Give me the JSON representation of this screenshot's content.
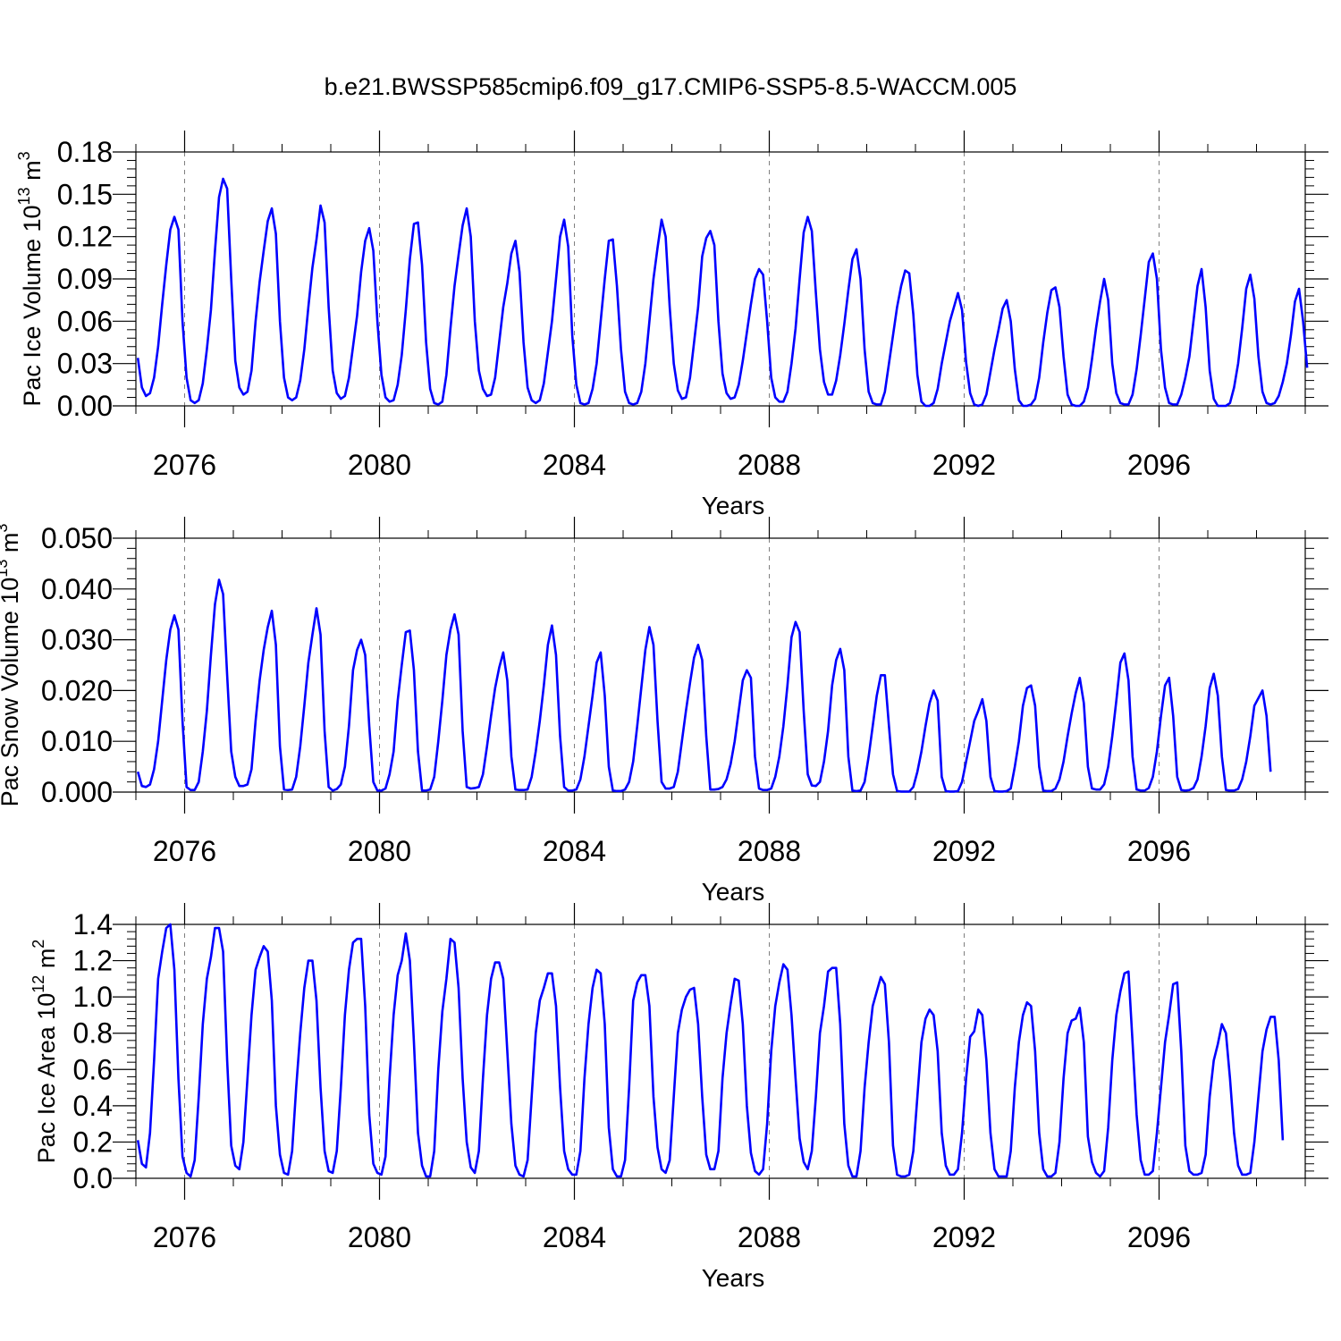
{
  "figure": {
    "title": "b.e21.BWSSP585cmip6.f09_g17.CMIP6-SSP5-8.5-WACCM.005"
  },
  "style": {
    "line_color": "#0000ff",
    "axis_color": "#000000",
    "grid_color": "#808080"
  },
  "chart_data": [
    {
      "type": "line",
      "title": "b.e21.BWSSP585cmip6.f09_g17.CMIP6-SSP5-8.5-WACCM.005",
      "xlabel": "Years",
      "ylabel": {
        "base": "Pac Ice Volume 10",
        "sup": "13",
        "unit": " m",
        "unit_sup": "3"
      },
      "xlim": [
        2075,
        2099
      ],
      "ylim": [
        0,
        0.18
      ],
      "xticks": [
        2076,
        2080,
        2084,
        2088,
        2092,
        2096
      ],
      "xtick_labels": [
        "2076",
        "2080",
        "2084",
        "2088",
        "2092",
        "2096"
      ],
      "yticks": [
        0,
        0.03,
        0.06,
        0.09,
        0.12,
        0.15,
        0.18
      ],
      "ytick_labels": [
        "0.00",
        "0.03",
        "0.06",
        "0.09",
        "0.12",
        "0.15",
        "0.18"
      ],
      "grid": "vertical dashed lines at major x ticks",
      "series": [
        {
          "x_start": 2075.04,
          "x_step": 0.08333,
          "values": [
            0.034,
            0.013,
            0.007,
            0.009,
            0.02,
            0.042,
            0.072,
            0.1,
            0.125,
            0.134,
            0.125,
            0.06,
            0.02,
            0.004,
            0.002,
            0.004,
            0.016,
            0.04,
            0.068,
            0.11,
            0.148,
            0.161,
            0.154,
            0.09,
            0.032,
            0.013,
            0.008,
            0.01,
            0.025,
            0.06,
            0.088,
            0.11,
            0.131,
            0.14,
            0.122,
            0.06,
            0.02,
            0.006,
            0.004,
            0.006,
            0.018,
            0.04,
            0.07,
            0.098,
            0.118,
            0.142,
            0.13,
            0.07,
            0.025,
            0.009,
            0.005,
            0.007,
            0.02,
            0.042,
            0.064,
            0.095,
            0.117,
            0.126,
            0.11,
            0.06,
            0.022,
            0.006,
            0.003,
            0.004,
            0.015,
            0.036,
            0.068,
            0.104,
            0.129,
            0.13,
            0.1,
            0.045,
            0.012,
            0.002,
            0.001,
            0.003,
            0.022,
            0.055,
            0.085,
            0.107,
            0.128,
            0.14,
            0.12,
            0.06,
            0.025,
            0.012,
            0.007,
            0.008,
            0.02,
            0.045,
            0.07,
            0.087,
            0.108,
            0.117,
            0.095,
            0.045,
            0.013,
            0.004,
            0.002,
            0.004,
            0.016,
            0.038,
            0.06,
            0.09,
            0.12,
            0.132,
            0.113,
            0.05,
            0.015,
            0.002,
            0.001,
            0.002,
            0.012,
            0.03,
            0.06,
            0.09,
            0.117,
            0.118,
            0.085,
            0.04,
            0.01,
            0.002,
            0.001,
            0.002,
            0.01,
            0.03,
            0.06,
            0.09,
            0.112,
            0.132,
            0.12,
            0.07,
            0.03,
            0.011,
            0.005,
            0.006,
            0.02,
            0.045,
            0.07,
            0.106,
            0.119,
            0.124,
            0.114,
            0.06,
            0.023,
            0.009,
            0.005,
            0.006,
            0.015,
            0.032,
            0.052,
            0.072,
            0.09,
            0.097,
            0.093,
            0.06,
            0.02,
            0.006,
            0.003,
            0.003,
            0.01,
            0.03,
            0.055,
            0.09,
            0.123,
            0.134,
            0.124,
            0.08,
            0.04,
            0.017,
            0.008,
            0.008,
            0.018,
            0.036,
            0.058,
            0.082,
            0.104,
            0.111,
            0.09,
            0.04,
            0.01,
            0.002,
            0.001,
            0.001,
            0.01,
            0.03,
            0.05,
            0.07,
            0.085,
            0.096,
            0.094,
            0.065,
            0.022,
            0.003,
            0.0,
            0.0,
            0.002,
            0.012,
            0.03,
            0.045,
            0.06,
            0.07,
            0.08,
            0.068,
            0.031,
            0.009,
            0.001,
            0.0,
            0.001,
            0.008,
            0.024,
            0.04,
            0.054,
            0.069,
            0.075,
            0.06,
            0.026,
            0.004,
            0.0,
            0.0,
            0.001,
            0.005,
            0.02,
            0.045,
            0.066,
            0.082,
            0.084,
            0.07,
            0.035,
            0.008,
            0.001,
            0.0,
            0.0,
            0.003,
            0.013,
            0.033,
            0.055,
            0.074,
            0.09,
            0.075,
            0.03,
            0.009,
            0.002,
            0.001,
            0.001,
            0.008,
            0.026,
            0.05,
            0.076,
            0.102,
            0.108,
            0.09,
            0.04,
            0.013,
            0.002,
            0.001,
            0.001,
            0.008,
            0.02,
            0.035,
            0.06,
            0.085,
            0.097,
            0.07,
            0.025,
            0.005,
            0.0,
            0.0,
            0.0,
            0.002,
            0.013,
            0.03,
            0.055,
            0.083,
            0.093,
            0.076,
            0.035,
            0.01,
            0.002,
            0.001,
            0.002,
            0.007,
            0.017,
            0.03,
            0.05,
            0.074,
            0.083,
            0.06,
            0.027
          ]
        }
      ]
    },
    {
      "type": "line",
      "xlabel": "Years",
      "ylabel": {
        "base": "Pac Snow Volume 10",
        "sup": "13",
        "unit": " m",
        "unit_sup": "3"
      },
      "xlim": [
        2075,
        2099
      ],
      "ylim": [
        0,
        0.05
      ],
      "xticks": [
        2076,
        2080,
        2084,
        2088,
        2092,
        2096
      ],
      "xtick_labels": [
        "2076",
        "2080",
        "2084",
        "2088",
        "2092",
        "2096"
      ],
      "yticks": [
        0,
        0.01,
        0.02,
        0.03,
        0.04,
        0.05
      ],
      "ytick_labels": [
        "0.000",
        "0.010",
        "0.020",
        "0.030",
        "0.040",
        "0.050"
      ],
      "grid": "vertical dashed lines at major x ticks",
      "series": [
        {
          "x_start": 2075.04,
          "x_step": 0.08333,
          "values": [
            0.004,
            0.0012,
            0.001,
            0.0015,
            0.0045,
            0.01,
            0.018,
            0.026,
            0.032,
            0.0348,
            0.032,
            0.014,
            0.001,
            0.0004,
            0.0004,
            0.002,
            0.008,
            0.016,
            0.027,
            0.037,
            0.0418,
            0.039,
            0.023,
            0.008,
            0.003,
            0.0012,
            0.0012,
            0.0015,
            0.0045,
            0.014,
            0.022,
            0.028,
            0.0325,
            0.0357,
            0.029,
            0.009,
            0.0005,
            0.0004,
            0.0005,
            0.003,
            0.009,
            0.017,
            0.0255,
            0.031,
            0.0362,
            0.031,
            0.012,
            0.001,
            0.0003,
            0.0006,
            0.0015,
            0.005,
            0.013,
            0.024,
            0.028,
            0.03,
            0.027,
            0.013,
            0.002,
            0.0003,
            0.0003,
            0.0007,
            0.0035,
            0.008,
            0.018,
            0.025,
            0.0315,
            0.0318,
            0.024,
            0.008,
            0.0003,
            0.0003,
            0.0005,
            0.003,
            0.01,
            0.018,
            0.027,
            0.032,
            0.035,
            0.031,
            0.012,
            0.001,
            0.0007,
            0.0008,
            0.001,
            0.0035,
            0.009,
            0.015,
            0.0205,
            0.0245,
            0.0275,
            0.022,
            0.007,
            0.0005,
            0.0004,
            0.0004,
            0.0005,
            0.003,
            0.008,
            0.014,
            0.021,
            0.029,
            0.0328,
            0.027,
            0.011,
            0.001,
            0.0003,
            0.0003,
            0.0005,
            0.0025,
            0.007,
            0.013,
            0.019,
            0.0255,
            0.0275,
            0.019,
            0.005,
            0.0003,
            0.0002,
            0.0002,
            0.0005,
            0.002,
            0.006,
            0.013,
            0.0205,
            0.028,
            0.0325,
            0.029,
            0.014,
            0.002,
            0.0007,
            0.0007,
            0.001,
            0.004,
            0.01,
            0.016,
            0.0215,
            0.0265,
            0.029,
            0.026,
            0.011,
            0.0005,
            0.0005,
            0.0006,
            0.001,
            0.0025,
            0.0055,
            0.01,
            0.016,
            0.022,
            0.024,
            0.0225,
            0.007,
            0.0007,
            0.0004,
            0.0004,
            0.0007,
            0.003,
            0.007,
            0.013,
            0.021,
            0.0305,
            0.0335,
            0.0315,
            0.016,
            0.0035,
            0.0013,
            0.0012,
            0.002,
            0.006,
            0.012,
            0.021,
            0.026,
            0.0282,
            0.024,
            0.007,
            0.0003,
            0.0002,
            0.0003,
            0.002,
            0.007,
            0.013,
            0.019,
            0.023,
            0.023,
            0.013,
            0.0035,
            0.0002,
            0.0001,
            0.0001,
            0.0001,
            0.001,
            0.004,
            0.008,
            0.013,
            0.0175,
            0.02,
            0.018,
            0.003,
            0.0002,
            0.0001,
            0.0001,
            0.0002,
            0.002,
            0.006,
            0.01,
            0.014,
            0.016,
            0.0183,
            0.014,
            0.003,
            0.0002,
            0.0001,
            0.0001,
            0.0002,
            0.0007,
            0.005,
            0.01,
            0.017,
            0.0205,
            0.021,
            0.017,
            0.005,
            0.0003,
            0.0002,
            0.0002,
            0.0007,
            0.0025,
            0.006,
            0.011,
            0.0155,
            0.0195,
            0.0225,
            0.0175,
            0.005,
            0.0007,
            0.0005,
            0.0005,
            0.0015,
            0.005,
            0.011,
            0.018,
            0.0255,
            0.0273,
            0.022,
            0.007,
            0.0005,
            0.0003,
            0.0003,
            0.0008,
            0.003,
            0.008,
            0.015,
            0.021,
            0.0225,
            0.015,
            0.003,
            0.0004,
            0.0003,
            0.0004,
            0.0008,
            0.0025,
            0.007,
            0.013,
            0.0205,
            0.0233,
            0.019,
            0.007,
            0.0004,
            0.0003,
            0.0003,
            0.0006,
            0.0025,
            0.006,
            0.011,
            0.017,
            0.0185,
            0.02,
            0.015,
            0.004
          ]
        }
      ]
    },
    {
      "type": "line",
      "xlabel": "Years",
      "ylabel": {
        "base": "Pac Ice Area 10",
        "sup": "12",
        "unit": " m",
        "unit_sup": "2"
      },
      "xlim": [
        2075,
        2099
      ],
      "ylim": [
        0,
        1.4
      ],
      "xticks": [
        2076,
        2080,
        2084,
        2088,
        2092,
        2096
      ],
      "xtick_labels": [
        "2076",
        "2080",
        "2084",
        "2088",
        "2092",
        "2096"
      ],
      "yticks": [
        0,
        0.2,
        0.4,
        0.6,
        0.8,
        1.0,
        1.2,
        1.4
      ],
      "ytick_labels": [
        "0.0",
        "0.2",
        "0.4",
        "0.6",
        "0.8",
        "1.0",
        "1.2",
        "1.4"
      ],
      "grid": "vertical dashed lines at major x ticks",
      "series": [
        {
          "x_start": 2075.04,
          "x_step": 0.08333,
          "values": [
            0.21,
            0.08,
            0.06,
            0.25,
            0.65,
            1.1,
            1.25,
            1.38,
            1.4,
            1.15,
            0.55,
            0.12,
            0.03,
            0.01,
            0.1,
            0.45,
            0.85,
            1.1,
            1.22,
            1.38,
            1.38,
            1.25,
            0.65,
            0.18,
            0.07,
            0.05,
            0.2,
            0.55,
            0.9,
            1.15,
            1.22,
            1.28,
            1.25,
            0.98,
            0.4,
            0.13,
            0.03,
            0.02,
            0.15,
            0.5,
            0.8,
            1.05,
            1.2,
            1.2,
            0.98,
            0.5,
            0.15,
            0.04,
            0.03,
            0.15,
            0.5,
            0.9,
            1.15,
            1.3,
            1.32,
            1.32,
            0.95,
            0.35,
            0.08,
            0.03,
            0.02,
            0.12,
            0.55,
            0.9,
            1.12,
            1.2,
            1.35,
            1.2,
            0.75,
            0.25,
            0.07,
            0.01,
            0.01,
            0.15,
            0.6,
            0.92,
            1.1,
            1.32,
            1.3,
            1.05,
            0.55,
            0.2,
            0.06,
            0.03,
            0.15,
            0.55,
            0.9,
            1.1,
            1.19,
            1.19,
            1.1,
            0.7,
            0.3,
            0.07,
            0.02,
            0.01,
            0.1,
            0.45,
            0.8,
            0.98,
            1.05,
            1.13,
            1.13,
            0.95,
            0.5,
            0.15,
            0.05,
            0.02,
            0.02,
            0.15,
            0.55,
            0.85,
            1.05,
            1.15,
            1.13,
            0.85,
            0.28,
            0.05,
            0.01,
            0.01,
            0.1,
            0.5,
            0.98,
            1.08,
            1.12,
            1.12,
            0.95,
            0.45,
            0.17,
            0.05,
            0.03,
            0.1,
            0.45,
            0.8,
            0.93,
            1.0,
            1.04,
            1.05,
            0.85,
            0.45,
            0.13,
            0.05,
            0.05,
            0.15,
            0.55,
            0.8,
            0.96,
            1.1,
            1.09,
            0.85,
            0.4,
            0.14,
            0.04,
            0.02,
            0.05,
            0.3,
            0.7,
            0.95,
            1.08,
            1.18,
            1.15,
            0.9,
            0.55,
            0.22,
            0.09,
            0.05,
            0.15,
            0.45,
            0.8,
            0.95,
            1.14,
            1.16,
            1.16,
            0.85,
            0.3,
            0.07,
            0.01,
            0.01,
            0.15,
            0.5,
            0.75,
            0.95,
            1.03,
            1.11,
            1.07,
            0.75,
            0.18,
            0.02,
            0.01,
            0.01,
            0.02,
            0.15,
            0.45,
            0.75,
            0.88,
            0.93,
            0.9,
            0.7,
            0.25,
            0.07,
            0.02,
            0.02,
            0.05,
            0.25,
            0.55,
            0.78,
            0.81,
            0.93,
            0.9,
            0.65,
            0.25,
            0.05,
            0.01,
            0.01,
            0.01,
            0.15,
            0.5,
            0.75,
            0.9,
            0.97,
            0.95,
            0.7,
            0.25,
            0.05,
            0.01,
            0.01,
            0.03,
            0.2,
            0.55,
            0.8,
            0.87,
            0.88,
            0.94,
            0.75,
            0.23,
            0.09,
            0.03,
            0.01,
            0.04,
            0.28,
            0.65,
            0.9,
            1.03,
            1.13,
            1.14,
            0.75,
            0.35,
            0.1,
            0.02,
            0.02,
            0.04,
            0.25,
            0.5,
            0.75,
            0.9,
            1.07,
            1.08,
            0.7,
            0.18,
            0.04,
            0.02,
            0.02,
            0.03,
            0.13,
            0.45,
            0.65,
            0.74,
            0.85,
            0.8,
            0.55,
            0.25,
            0.07,
            0.02,
            0.02,
            0.03,
            0.2,
            0.45,
            0.7,
            0.82,
            0.89,
            0.89,
            0.65,
            0.21
          ]
        }
      ]
    }
  ]
}
